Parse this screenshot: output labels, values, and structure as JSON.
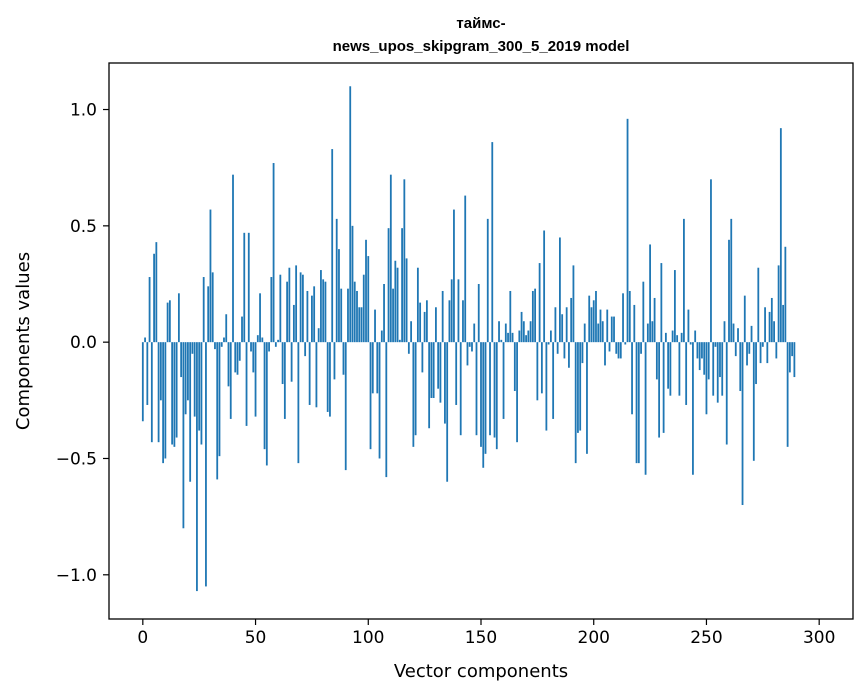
{
  "chart_data": {
    "type": "bar",
    "title_lines": [
      "таймс-",
      "news_upos_skipgram_300_5_2019 model"
    ],
    "xlabel": "Vector components",
    "ylabel": "Components values",
    "xlim": [
      -15,
      315
    ],
    "ylim": [
      -1.19,
      1.2
    ],
    "xticks": [
      0,
      50,
      100,
      150,
      200,
      250,
      300
    ],
    "xtick_labels": [
      "0",
      "50",
      "100",
      "150",
      "200",
      "250",
      "300"
    ],
    "yticks": [
      -1.0,
      -0.5,
      0.0,
      0.5,
      1.0
    ],
    "ytick_labels": [
      "−1.0",
      "−0.5",
      "0.0",
      "0.5",
      "1.0"
    ],
    "grid": false,
    "bar_color": "#1f77b4",
    "bar_width": 0.8,
    "values": [
      -0.34,
      0.02,
      -0.27,
      0.28,
      -0.43,
      0.38,
      0.43,
      -0.43,
      -0.25,
      -0.52,
      -0.5,
      0.17,
      0.18,
      -0.44,
      -0.45,
      -0.41,
      0.21,
      -0.15,
      -0.8,
      -0.31,
      -0.25,
      -0.6,
      -0.05,
      -0.32,
      -1.07,
      -0.38,
      -0.44,
      0.28,
      -1.05,
      0.24,
      0.57,
      0.3,
      -0.03,
      -0.59,
      -0.49,
      -0.02,
      0.02,
      0.12,
      -0.19,
      -0.33,
      0.72,
      -0.13,
      -0.14,
      -0.08,
      0.11,
      0.47,
      -0.36,
      0.47,
      -0.04,
      -0.13,
      -0.32,
      0.03,
      0.21,
      0.02,
      -0.46,
      -0.53,
      -0.04,
      0.28,
      0.77,
      -0.02,
      0.01,
      0.29,
      -0.18,
      -0.33,
      0.26,
      0.32,
      -0.17,
      0.16,
      0.33,
      -0.52,
      0.3,
      0.29,
      -0.06,
      0.22,
      -0.27,
      0.2,
      0.24,
      -0.28,
      0.06,
      0.31,
      0.27,
      0.26,
      -0.3,
      -0.32,
      0.83,
      -0.16,
      0.53,
      0.4,
      0.23,
      -0.14,
      -0.55,
      0.23,
      1.1,
      0.5,
      0.26,
      0.22,
      0.15,
      0.15,
      0.29,
      0.44,
      0.37,
      -0.46,
      -0.22,
      0.14,
      -0.22,
      -0.5,
      0.05,
      0.25,
      -0.58,
      0.49,
      0.72,
      0.23,
      0.35,
      0.32,
      0.01,
      0.49,
      0.7,
      0.36,
      -0.05,
      0.09,
      -0.45,
      -0.4,
      0.32,
      0.17,
      -0.13,
      0.13,
      0.18,
      -0.37,
      -0.24,
      -0.24,
      0.15,
      -0.2,
      -0.26,
      0.22,
      -0.35,
      -0.6,
      0.18,
      0.27,
      0.57,
      -0.27,
      0.27,
      -0.4,
      0.18,
      0.63,
      -0.1,
      -0.02,
      -0.04,
      0.08,
      -0.4,
      0.25,
      -0.45,
      -0.54,
      -0.48,
      0.53,
      -0.4,
      0.86,
      -0.41,
      -0.46,
      0.09,
      0.01,
      -0.33,
      0.08,
      0.04,
      0.22,
      0.04,
      -0.21,
      -0.43,
      0.05,
      0.13,
      0.09,
      0.03,
      0.05,
      0.09,
      0.22,
      0.23,
      -0.25,
      0.34,
      -0.22,
      0.48,
      -0.38,
      -0.01,
      0.05,
      -0.33,
      0.15,
      -0.05,
      0.45,
      0.12,
      -0.07,
      0.15,
      -0.11,
      0.19,
      0.33,
      -0.52,
      -0.39,
      -0.38,
      -0.09,
      0.08,
      -0.48,
      0.2,
      0.15,
      0.18,
      0.22,
      0.08,
      0.14,
      0.09,
      -0.1,
      0.14,
      -0.04,
      0.11,
      0.11,
      -0.05,
      -0.07,
      -0.07,
      0.21,
      -0.01,
      0.96,
      0.22,
      -0.31,
      0.16,
      -0.52,
      -0.52,
      -0.05,
      0.26,
      -0.57,
      0.08,
      0.42,
      0.09,
      0.19,
      -0.16,
      -0.41,
      0.34,
      -0.39,
      0.04,
      -0.2,
      -0.23,
      0.05,
      0.31,
      0.03,
      -0.23,
      0.04,
      0.53,
      -0.27,
      0.14,
      -0.01,
      -0.57,
      0.05,
      -0.07,
      -0.12,
      -0.07,
      -0.14,
      -0.31,
      -0.16,
      0.7,
      -0.23,
      -0.02,
      -0.26,
      -0.15,
      -0.23,
      0.09,
      -0.44,
      0.44,
      0.53,
      0.08,
      -0.06,
      0.06,
      -0.21,
      -0.7,
      0.2,
      -0.1,
      -0.05,
      0.07,
      -0.51,
      -0.18,
      0.32,
      -0.09,
      -0.02,
      0.15,
      -0.09,
      0.13,
      0.19,
      0.09,
      -0.07,
      0.33,
      0.92,
      0.16,
      0.41,
      -0.45,
      -0.13,
      -0.06,
      -0.15
    ]
  }
}
